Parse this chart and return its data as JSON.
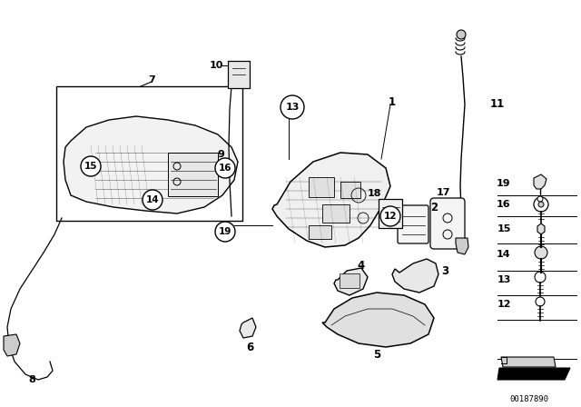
{
  "bg_color": "#ffffff",
  "line_color": "#000000",
  "diagram_id": "00187890",
  "figsize": [
    6.4,
    4.48
  ],
  "dpi": 100
}
